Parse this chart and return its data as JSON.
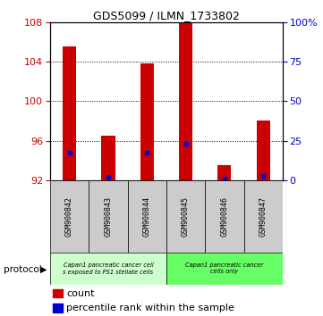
{
  "title": "GDS5099 / ILMN_1733802",
  "samples": [
    "GSM900842",
    "GSM900843",
    "GSM900844",
    "GSM900845",
    "GSM900846",
    "GSM900847"
  ],
  "red_values": [
    105.5,
    96.5,
    103.8,
    108.0,
    93.5,
    98.0
  ],
  "blue_values": [
    94.8,
    92.3,
    94.8,
    95.7,
    92.2,
    92.4
  ],
  "y_min": 92,
  "y_max": 108,
  "y_ticks_left": [
    92,
    96,
    100,
    104,
    108
  ],
  "right_tick_positions": [
    92,
    96,
    100,
    104,
    108
  ],
  "right_tick_labels": [
    "0",
    "25",
    "50",
    "75",
    "100%"
  ],
  "red_color": "#cc0000",
  "blue_color": "#0000cc",
  "bar_width": 0.35,
  "group1_label_line1": "Capan1 pancreatic cancer cell",
  "group1_label_line2": "s exposed to PS1 stellate cells",
  "group2_label_line1": "Capan1 pancreatic cancer",
  "group2_label_line2": "cells only",
  "group1_color": "#ccffcc",
  "group2_color": "#66ff66",
  "protocol_label": "protocol",
  "legend_count": "count",
  "legend_percentile": "percentile rank within the sample"
}
